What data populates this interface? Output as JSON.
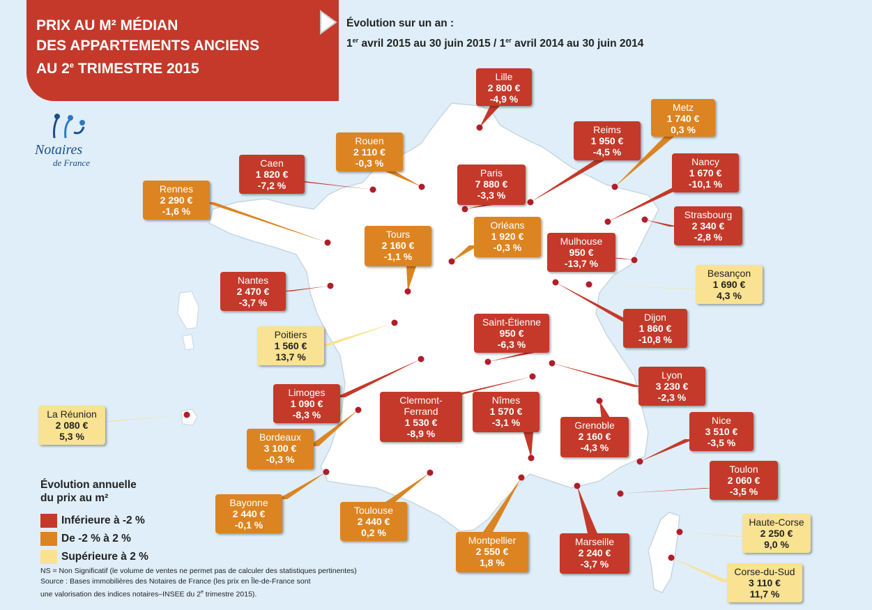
{
  "title": {
    "line1": "PRIX AU M² MÉDIAN",
    "line2": "DES APPARTEMENTS ANCIENS",
    "line3_pre": "AU 2",
    "line3_sup": "e",
    "line3_post": " TRIMESTRE 2015"
  },
  "subtitle": {
    "line1": "Évolution sur un an :",
    "line2_a": "1",
    "line2_sup1": "er",
    "line2_b": " avril 2015 au 30 juin 2015 / 1",
    "line2_sup2": "er",
    "line2_c": " avril 2014 au 30 juin 2014"
  },
  "logo": {
    "name": "Notaires",
    "sub": "de France",
    "icon": "notaires-logo-icon"
  },
  "colors": {
    "red": "#c4392a",
    "orange": "#dc8421",
    "yellow": "#f9e291"
  },
  "cities": [
    {
      "name": "Lille",
      "price": "2 800 €",
      "evo": "-4,9 %",
      "cat": "red"
    },
    {
      "name": "Rouen",
      "price": "2 110 €",
      "evo": "-0,3 %",
      "cat": "orange"
    },
    {
      "name": "Metz",
      "price": "1 740 €",
      "evo": "0,3 %",
      "cat": "orange"
    },
    {
      "name": "Reims",
      "price": "1 950 €",
      "evo": "-4,5 %",
      "cat": "red"
    },
    {
      "name": "Caen",
      "price": "1 820 €",
      "evo": "-7,2 %",
      "cat": "red"
    },
    {
      "name": "Paris",
      "price": "7 880 €",
      "evo": "-3,3 %",
      "cat": "red"
    },
    {
      "name": "Nancy",
      "price": "1 670 €",
      "evo": "-10,1 %",
      "cat": "red"
    },
    {
      "name": "Rennes",
      "price": "2 290 €",
      "evo": "-1,6 %",
      "cat": "orange"
    },
    {
      "name": "Strasbourg",
      "price": "2 340 €",
      "evo": "-2,8 %",
      "cat": "red"
    },
    {
      "name": "Tours",
      "price": "2 160 €",
      "evo": "-1,1 %",
      "cat": "orange"
    },
    {
      "name": "Orléans",
      "price": "1 920 €",
      "evo": "-0,3 %",
      "cat": "orange"
    },
    {
      "name": "Mulhouse",
      "price": "950 €",
      "evo": "-13,7 %",
      "cat": "red"
    },
    {
      "name": "Besançon",
      "price": "1 690 €",
      "evo": "4,3 %",
      "cat": "yellow"
    },
    {
      "name": "Nantes",
      "price": "2 470 €",
      "evo": "-3,7 %",
      "cat": "red"
    },
    {
      "name": "Dijon",
      "price": "1 860 €",
      "evo": "-10,8 %",
      "cat": "red"
    },
    {
      "name": "Saint-Étienne",
      "price": "950 €",
      "evo": "-6,3 %",
      "cat": "red"
    },
    {
      "name": "Poitiers",
      "price": "1 560 €",
      "evo": "13,7 %",
      "cat": "yellow"
    },
    {
      "name": "Lyon",
      "price": "3 230 €",
      "evo": "-2,3 %",
      "cat": "red"
    },
    {
      "name": "Limoges",
      "price": "1 090 €",
      "evo": "-8,3 %",
      "cat": "red"
    },
    {
      "name": "Clermont-Ferrand",
      "price": "1 530 €",
      "evo": "-8,9 %",
      "cat": "red"
    },
    {
      "name": "Nîmes",
      "price": "1 570 €",
      "evo": "-3,1 %",
      "cat": "red"
    },
    {
      "name": "La Réunion",
      "price": "2 080 €",
      "evo": "5,3 %",
      "cat": "yellow"
    },
    {
      "name": "Grenoble",
      "price": "2 160 €",
      "evo": "-4,3 %",
      "cat": "red"
    },
    {
      "name": "Nice",
      "price": "3 510 €",
      "evo": "-3,5 %",
      "cat": "red"
    },
    {
      "name": "Bordeaux",
      "price": "3 100 €",
      "evo": "-0,3 %",
      "cat": "orange"
    },
    {
      "name": "Toulon",
      "price": "2 060 €",
      "evo": "-3,5 %",
      "cat": "red"
    },
    {
      "name": "Bayonne",
      "price": "2 440 €",
      "evo": "-0,1 %",
      "cat": "orange"
    },
    {
      "name": "Toulouse",
      "price": "2 440 €",
      "evo": "0,2 %",
      "cat": "orange"
    },
    {
      "name": "Haute-Corse",
      "price": "2 250 €",
      "evo": "9,0 %",
      "cat": "yellow"
    },
    {
      "name": "Montpellier",
      "price": "2 550 €",
      "evo": "1,8 %",
      "cat": "orange"
    },
    {
      "name": "Marseille",
      "price": "2 240 €",
      "evo": "-3,7 %",
      "cat": "red"
    },
    {
      "name": "Corse-du-Sud",
      "price": "3 110 €",
      "evo": "11,7 %",
      "cat": "yellow"
    }
  ],
  "legend": {
    "title1": "Évolution annuelle",
    "title2": "du prix au m²",
    "items": [
      {
        "label": "Inférieure à -2 %",
        "color": "#c4392a"
      },
      {
        "label": "De -2 % à 2 %",
        "color": "#dc8421"
      },
      {
        "label": "Supérieure à 2 %",
        "color": "#f9e291"
      }
    ]
  },
  "notes": {
    "ns": "NS = Non Significatif (le volume de ventes ne permet pas de calculer des statistiques pertinentes)",
    "source1": "Source : Bases immobilières des Notaires de France (les prix en Île-de-France sont",
    "source2_a": "une valorisation des indices notaires–INSEE du 2",
    "source2_sup": "e",
    "source2_b": " trimestre 2015)."
  }
}
